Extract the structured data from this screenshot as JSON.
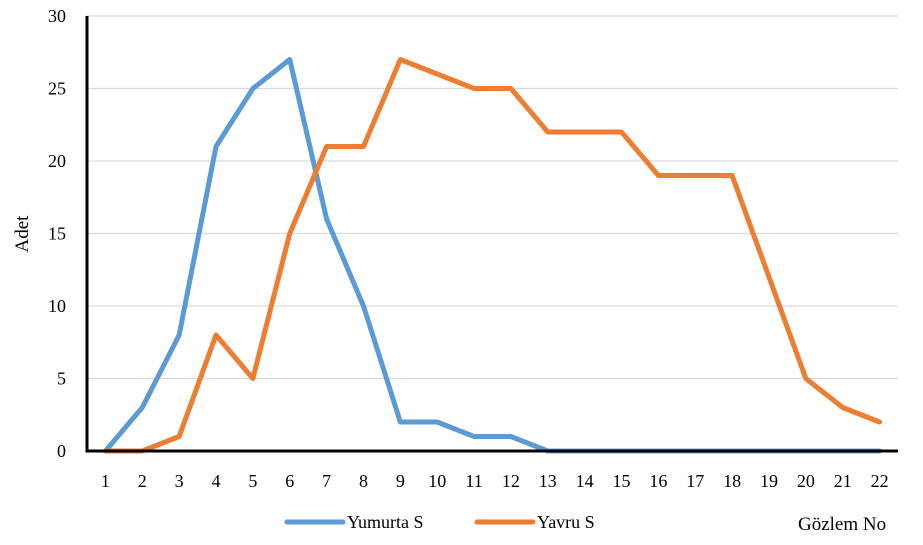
{
  "chart_data": {
    "type": "line",
    "title": "",
    "xlabel": "Gözlem No",
    "ylabel": "Adet",
    "categories": [
      "1",
      "2",
      "3",
      "4",
      "5",
      "6",
      "7",
      "8",
      "9",
      "10",
      "11",
      "12",
      "13",
      "14",
      "15",
      "16",
      "17",
      "18",
      "19",
      "20",
      "21",
      "22"
    ],
    "ylim": [
      0,
      30
    ],
    "yticks": [
      0,
      5,
      10,
      15,
      20,
      25,
      30
    ],
    "grid": true,
    "legend": "bottom",
    "series": [
      {
        "name": "Yumurta S",
        "color": "#5B9BD5",
        "values": [
          0,
          3,
          8,
          21,
          25,
          27,
          16,
          10,
          2,
          2,
          1,
          1,
          0,
          0,
          0,
          0,
          0,
          0,
          0,
          0,
          0,
          0
        ]
      },
      {
        "name": "Yavru S",
        "color": "#ED7D31",
        "values": [
          0,
          0,
          1,
          8,
          5,
          15,
          21,
          21,
          27,
          26,
          25,
          25,
          22,
          22,
          22,
          19,
          19,
          19,
          12,
          5,
          3,
          2
        ]
      }
    ]
  }
}
